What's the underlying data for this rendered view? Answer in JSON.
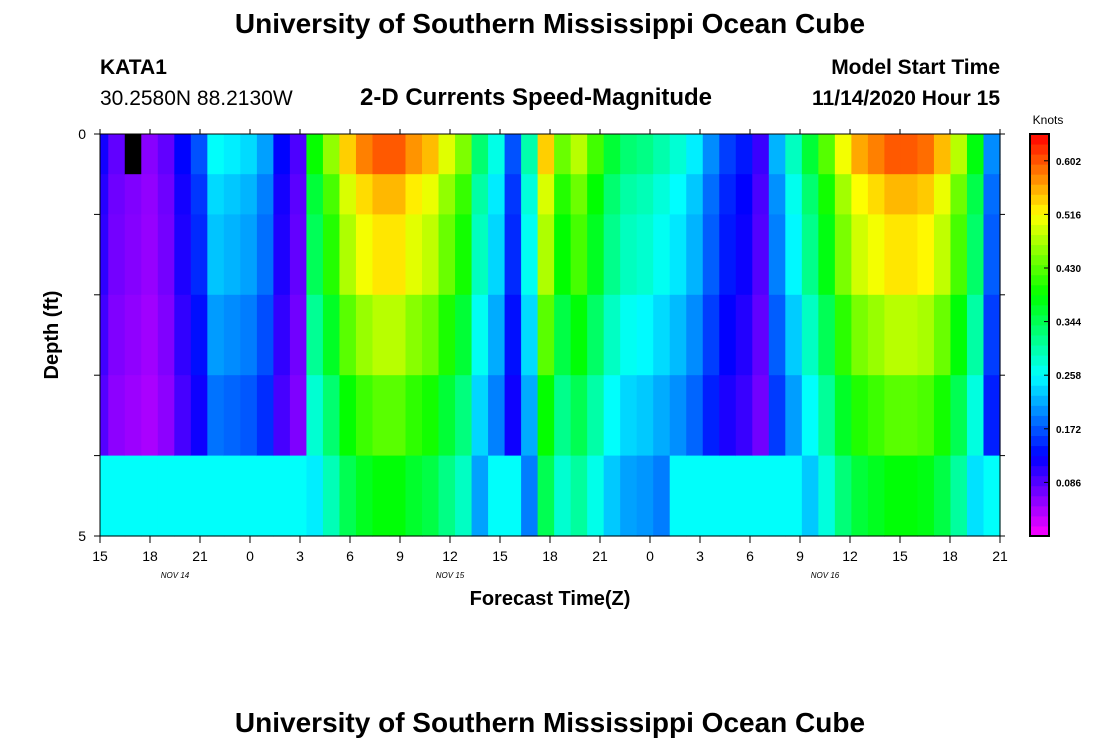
{
  "header": {
    "title": "University of Southern Mississippi Ocean Cube",
    "station": "KATA1",
    "coords": "30.2580N 88.2130W",
    "plot_title": "2-D Currents Speed-Magnitude",
    "model_start_label": "Model Start Time",
    "model_start_value": "11/14/2020 Hour 15"
  },
  "footer": {
    "title": "University of Southern Mississippi Ocean Cube"
  },
  "chart_data": {
    "type": "heatmap",
    "title": "2-D Currents Speed-Magnitude",
    "xlabel": "Forecast Time(Z)",
    "ylabel": "Depth (ft)",
    "units": "Knots",
    "x_hours": [
      0,
      1,
      2,
      3,
      4,
      5,
      6,
      7,
      8,
      9,
      10,
      11,
      12,
      13,
      14,
      15,
      16,
      17,
      18,
      19,
      20,
      21,
      22,
      23,
      24,
      25,
      26,
      27,
      28,
      29,
      30,
      31,
      32,
      33,
      34,
      35,
      36,
      37,
      38,
      39,
      40,
      41,
      42,
      43,
      44,
      45,
      46,
      47,
      48,
      49,
      50,
      51,
      52,
      53,
      54
    ],
    "depth_bands_ft": [
      "0.0-0.5",
      "0.5-1.0",
      "1.0-2.0",
      "2.0-3.0",
      "3.0-4.0",
      "4.0-5.0"
    ],
    "profile": [
      0.12,
      0.08,
      0.07,
      0.06,
      0.08,
      0.13,
      0.17,
      0.26,
      0.25,
      0.24,
      0.21,
      0.13,
      0.09,
      0.39,
      0.46,
      0.54,
      0.58,
      0.6,
      0.6,
      0.57,
      0.55,
      0.5,
      0.45,
      0.33,
      0.27,
      0.17,
      0.3,
      0.54,
      0.44,
      0.48,
      0.42,
      0.36,
      0.33,
      0.32,
      0.3,
      0.28,
      0.25,
      0.2,
      0.16,
      0.14,
      0.1,
      0.22,
      0.29,
      0.36,
      0.43,
      0.51,
      0.56,
      0.58,
      0.6,
      0.6,
      0.59,
      0.55,
      0.48,
      0.38,
      0.2
    ],
    "depth_factor": [
      1.0,
      0.92,
      0.88,
      0.8,
      0.72,
      0.64
    ],
    "bottom_fill": 0.26,
    "mask": [
      {
        "x_start": 2,
        "x_end": 2,
        "depth_band": 0
      }
    ],
    "x_tick_labels": [
      "15",
      "18",
      "21",
      "0",
      "3",
      "6",
      "9",
      "12",
      "15",
      "18",
      "21",
      "0",
      "3",
      "6",
      "9",
      "12",
      "15",
      "18",
      "21"
    ],
    "date_labels": [
      "NOV 14",
      "NOV 15",
      "NOV 16"
    ],
    "y_tick_labels": [
      "0",
      "5"
    ],
    "ylim": [
      0,
      5
    ],
    "colorbar": {
      "label": "Knots",
      "ticks": [
        "0.086",
        "0.172",
        "0.258",
        "0.344",
        "0.430",
        "0.516",
        "0.602"
      ],
      "range": [
        0.0,
        0.645
      ]
    }
  }
}
